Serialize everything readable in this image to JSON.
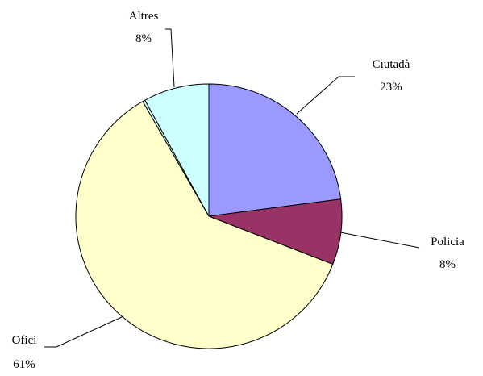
{
  "chart_data": {
    "type": "pie",
    "title": "",
    "slices": [
      {
        "name": "Ciutadà",
        "value": 23,
        "label": "23%",
        "color": "#9999ff"
      },
      {
        "name": "Policia",
        "value": 8,
        "label": "8%",
        "color": "#993366"
      },
      {
        "name": "Ofici",
        "value": 61,
        "label": "61%",
        "color": "#ffffcc"
      },
      {
        "name": "",
        "value": 0.3,
        "label": "",
        "color": "#ccffff"
      },
      {
        "name": "Altres",
        "value": 8,
        "label": "8%",
        "color": "#ccffff"
      }
    ],
    "start_angle_deg": 0,
    "direction": "clockwise",
    "legend": "none",
    "data_labels": "category-and-percent-outside-with-leader-lines"
  }
}
